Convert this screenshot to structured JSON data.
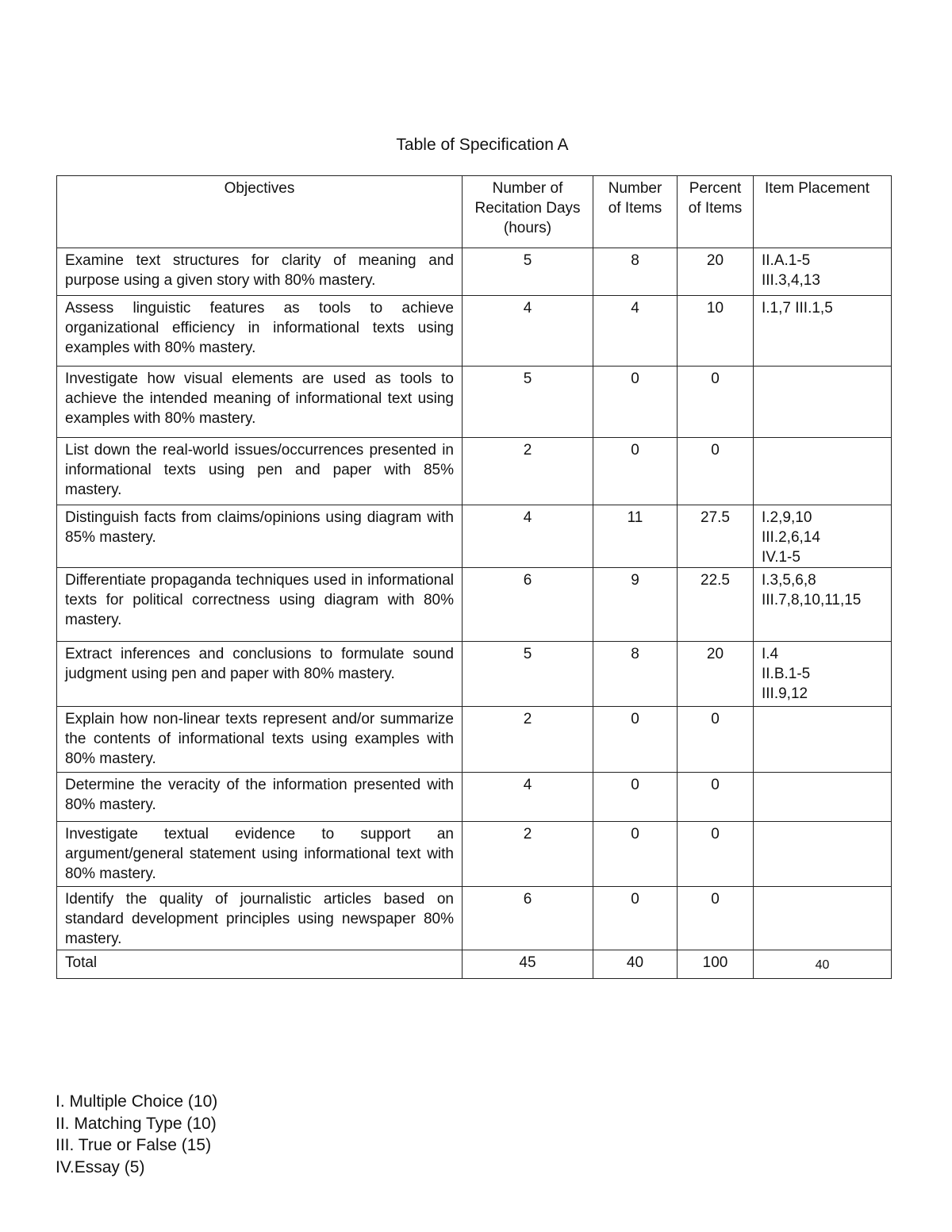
{
  "title": "Table of Specification A",
  "headers": [
    "Objectives",
    "Number of Recitation Days (hours)",
    "Number of Items",
    "Percent of Items",
    "Item Placement"
  ],
  "rows": [
    {
      "objective": "Examine text structures for clarity of meaning and purpose using a given story with 80% mastery.",
      "days": "5",
      "items": "8",
      "percent": "20",
      "placement": "II.A.1-5\nIII.3,4,13"
    },
    {
      "objective": "Assess linguistic features as tools to achieve organizational efficiency in informational texts using examples with 80% mastery.",
      "days": "4",
      "items": "4",
      "percent": "10",
      "placement": "I.1,7 III.1,5"
    },
    {
      "objective": "Investigate how visual elements are used as tools to achieve the intended meaning of informational text using examples with 80% mastery.",
      "days": "5",
      "items": "0",
      "percent": "0",
      "placement": ""
    },
    {
      "objective": "List down the real-world issues/occurrences presented in informational texts using pen and paper with 85% mastery.",
      "days": "2",
      "items": "0",
      "percent": "0",
      "placement": ""
    },
    {
      "objective": "Distinguish facts from claims/opinions using diagram with 85% mastery.",
      "days": "4",
      "items": "11",
      "percent": "27.5",
      "placement": "I.2,9,10\nIII.2,6,14\nIV.1-5"
    },
    {
      "objective": "Differentiate propaganda techniques used in informational texts for political correctness using diagram with 80% mastery.",
      "days": "6",
      "items": "9",
      "percent": "22.5",
      "placement": "I.3,5,6,8\nIII.7,8,10,11,15"
    },
    {
      "objective": "Extract inferences and conclusions to formulate sound judgment using pen and paper with 80% mastery.",
      "days": "5",
      "items": "8",
      "percent": "20",
      "placement": "I.4\nII.B.1-5\nIII.9,12"
    },
    {
      "objective": "Explain how non-linear texts represent and/or summarize the contents of informational texts using examples with 80% mastery.",
      "days": "2",
      "items": "0",
      "percent": "0",
      "placement": ""
    },
    {
      "objective": "Determine the veracity of the information presented with 80% mastery.",
      "days": "4",
      "items": "0",
      "percent": "0",
      "placement": ""
    },
    {
      "objective": "Investigate textual evidence to support an argument/general statement using informational text with 80% mastery.",
      "days": "2",
      "items": "0",
      "percent": "0",
      "placement": ""
    },
    {
      "objective": "Identify the quality of journalistic articles based on standard development principles using newspaper 80% mastery.",
      "days": "6",
      "items": "0",
      "percent": "0",
      "placement": ""
    }
  ],
  "total": {
    "label": "Total",
    "days": "45",
    "items": "40",
    "percent": "100",
    "placement": "40"
  },
  "legend": [
    "I. Multiple Choice (10)",
    "II. Matching Type (10)",
    "III. True or False (15)",
    "IV.Essay (5)"
  ]
}
